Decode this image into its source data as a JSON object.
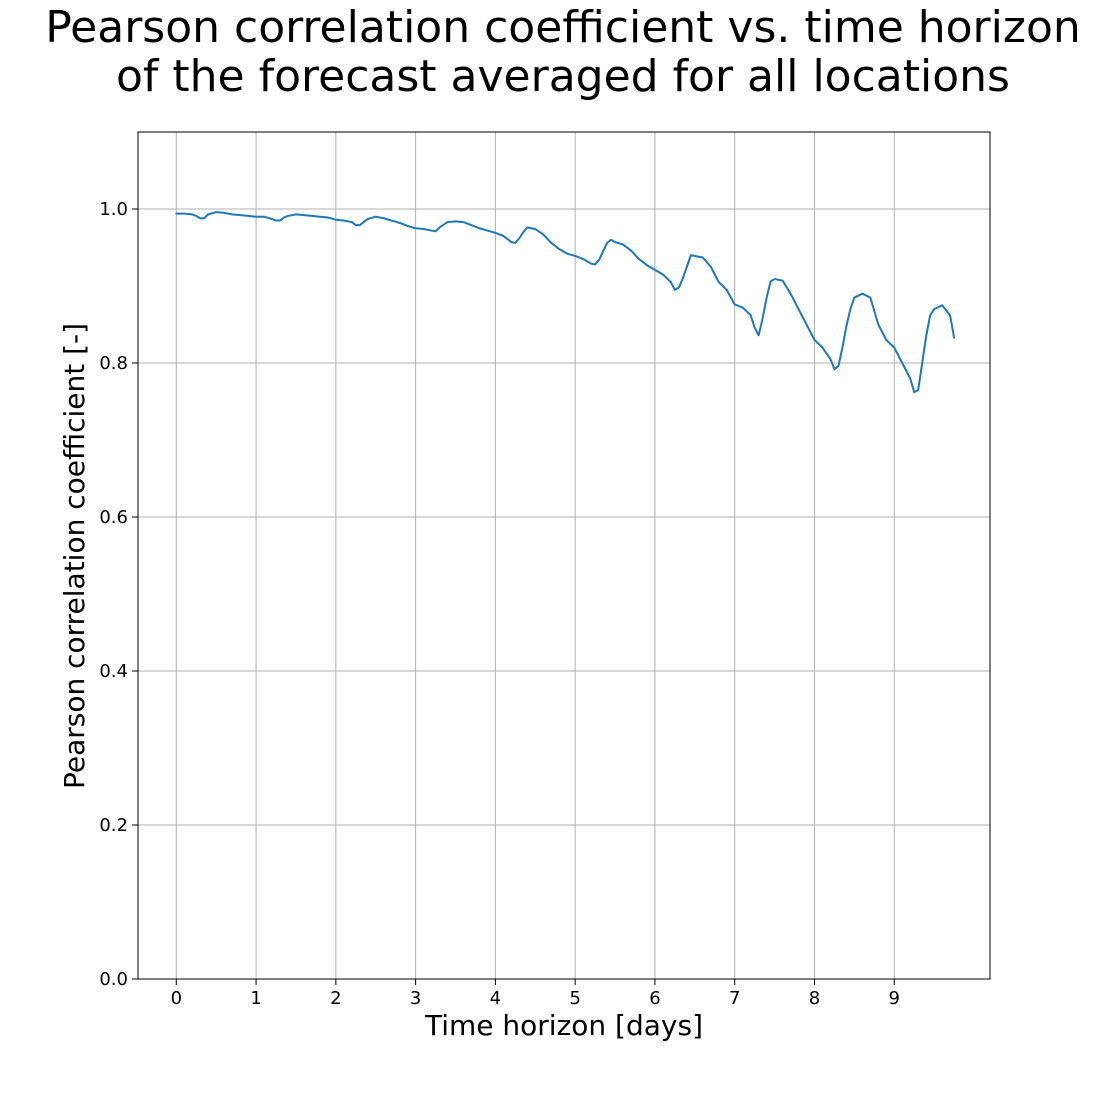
{
  "chart_data": {
    "type": "line",
    "title_line1": "Pearson correlation coefficient vs. time horizon",
    "title_line2": "of the forecast averaged for all locations",
    "xlabel": "Time horizon [days]",
    "ylabel": "Pearson correlation coefficient [-]",
    "xlim": [
      -0.48,
      10.2
    ],
    "ylim": [
      0.0,
      1.1
    ],
    "x_ticks": [
      0,
      1,
      2,
      3,
      4,
      5,
      6,
      7,
      8,
      9
    ],
    "x_tick_labels": [
      "0",
      "1",
      "2",
      "3",
      "4",
      "5",
      "6",
      "7",
      "8",
      "9"
    ],
    "y_ticks": [
      0.0,
      0.2,
      0.4,
      0.6,
      0.8,
      1.0
    ],
    "y_tick_labels": [
      "0.0",
      "0.2",
      "0.4",
      "0.6",
      "0.8",
      "1.0"
    ],
    "grid": true,
    "line_color": "#1f77b4",
    "series": [
      {
        "x": [
          0.0,
          0.1,
          0.2,
          0.25,
          0.3,
          0.35,
          0.4,
          0.5,
          0.6,
          0.7,
          0.8,
          0.9,
          1.0,
          1.1,
          1.2,
          1.25,
          1.3,
          1.35,
          1.4,
          1.5,
          1.6,
          1.7,
          1.8,
          1.9,
          2.0,
          2.1,
          2.2,
          2.25,
          2.3,
          2.35,
          2.4,
          2.5,
          2.6,
          2.7,
          2.8,
          2.9,
          3.0,
          3.1,
          3.2,
          3.25,
          3.3,
          3.4,
          3.5,
          3.6,
          3.7,
          3.8,
          3.9,
          4.0,
          4.1,
          4.2,
          4.25,
          4.3,
          4.35,
          4.4,
          4.45,
          4.5,
          4.6,
          4.7,
          4.8,
          4.9,
          5.0,
          5.1,
          5.2,
          5.25,
          5.3,
          5.35,
          5.4,
          5.45,
          5.5,
          5.6,
          5.7,
          5.8,
          5.9,
          6.0,
          6.1,
          6.2,
          6.25,
          6.3,
          6.35,
          6.4,
          6.45,
          6.5,
          6.6,
          6.7,
          6.8,
          6.9,
          7.0,
          7.1,
          7.2,
          7.25,
          7.3,
          7.35,
          7.4,
          7.45,
          7.5,
          7.6,
          7.7,
          7.8,
          7.9,
          8.0,
          8.1,
          8.2,
          8.25,
          8.3,
          8.35,
          8.4,
          8.45,
          8.5,
          8.6,
          8.7,
          8.8,
          8.9,
          9.0,
          9.1,
          9.2,
          9.25,
          9.3,
          9.35,
          9.4,
          9.45,
          9.5,
          9.6,
          9.7,
          9.75
        ],
        "y": [
          0.994,
          0.994,
          0.993,
          0.991,
          0.988,
          0.988,
          0.993,
          0.996,
          0.995,
          0.993,
          0.992,
          0.991,
          0.99,
          0.99,
          0.987,
          0.985,
          0.985,
          0.989,
          0.991,
          0.993,
          0.992,
          0.991,
          0.99,
          0.989,
          0.986,
          0.985,
          0.983,
          0.979,
          0.979,
          0.983,
          0.987,
          0.99,
          0.988,
          0.985,
          0.982,
          0.978,
          0.975,
          0.974,
          0.972,
          0.971,
          0.976,
          0.983,
          0.984,
          0.983,
          0.979,
          0.975,
          0.972,
          0.969,
          0.965,
          0.957,
          0.956,
          0.962,
          0.97,
          0.976,
          0.975,
          0.974,
          0.967,
          0.956,
          0.948,
          0.942,
          0.939,
          0.935,
          0.929,
          0.928,
          0.934,
          0.945,
          0.956,
          0.96,
          0.957,
          0.954,
          0.946,
          0.935,
          0.927,
          0.921,
          0.915,
          0.905,
          0.895,
          0.898,
          0.91,
          0.925,
          0.94,
          0.939,
          0.937,
          0.925,
          0.905,
          0.895,
          0.876,
          0.872,
          0.862,
          0.846,
          0.836,
          0.858,
          0.885,
          0.906,
          0.909,
          0.907,
          0.89,
          0.87,
          0.85,
          0.83,
          0.82,
          0.805,
          0.792,
          0.796,
          0.82,
          0.848,
          0.87,
          0.885,
          0.89,
          0.885,
          0.85,
          0.83,
          0.82,
          0.8,
          0.78,
          0.762,
          0.765,
          0.8,
          0.835,
          0.862,
          0.87,
          0.875,
          0.862,
          0.833
        ]
      }
    ]
  }
}
